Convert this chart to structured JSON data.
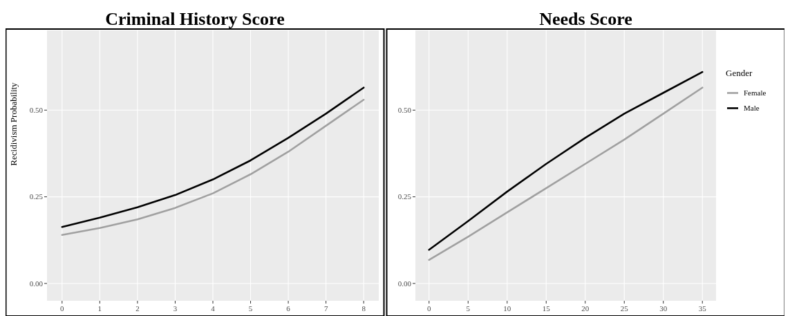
{
  "chart_data": [
    {
      "type": "line",
      "title": "Criminal History Score",
      "ylabel": "Recidivism Probability",
      "x": [
        0,
        1,
        2,
        3,
        4,
        5,
        6,
        7,
        8
      ],
      "series": [
        {
          "color": "#a0a0a0",
          "values": [
            0.14,
            0.16,
            0.185,
            0.218,
            0.26,
            0.315,
            0.38,
            0.455,
            0.53
          ]
        },
        {
          "color": "#000000",
          "values": [
            0.163,
            0.19,
            0.22,
            0.255,
            0.3,
            0.355,
            0.42,
            0.49,
            0.565
          ]
        }
      ],
      "xlim": [
        -0.4,
        8.4
      ],
      "xticks": [
        0,
        1,
        2,
        3,
        4,
        5,
        6,
        7,
        8
      ],
      "ylim": [
        -0.05,
        0.73
      ],
      "yticks": [
        {
          "value": 0,
          "label": "0.00"
        },
        {
          "value": 0.25,
          "label": "0.25"
        },
        {
          "value": 0.5,
          "label": "0.50"
        }
      ],
      "grid": true,
      "legend": false
    },
    {
      "type": "line",
      "title": "Needs Score",
      "legend_title": "Gender",
      "x": [
        0,
        5,
        10,
        15,
        20,
        25,
        30,
        35
      ],
      "series": [
        {
          "name": "Female",
          "color": "#a0a0a0",
          "values": [
            0.068,
            0.135,
            0.205,
            0.275,
            0.345,
            0.415,
            0.49,
            0.565
          ]
        },
        {
          "name": "Male",
          "color": "#000000",
          "values": [
            0.097,
            0.18,
            0.265,
            0.345,
            0.42,
            0.49,
            0.55,
            0.61
          ]
        }
      ],
      "xlim": [
        -1.75,
        36.75
      ],
      "xticks": [
        0,
        5,
        10,
        15,
        20,
        25,
        30,
        35
      ],
      "ylim": [
        -0.05,
        0.73
      ],
      "yticks": [
        {
          "value": 0,
          "label": "0.00"
        },
        {
          "value": 0.25,
          "label": "0.25"
        },
        {
          "value": 0.5,
          "label": "0.50"
        }
      ],
      "grid": true,
      "legend": "right"
    }
  ]
}
